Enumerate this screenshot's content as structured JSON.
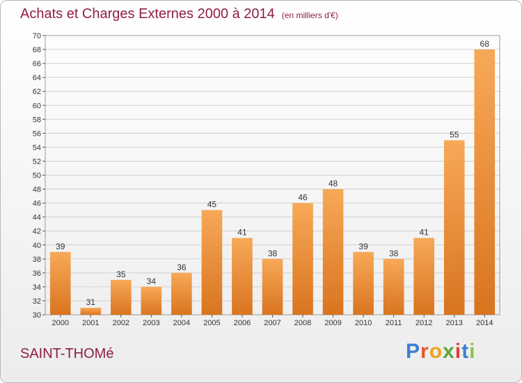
{
  "title": "Achats et Charges Externes 2000 à 2014",
  "unit_label": "(en milliers d'€)",
  "commune": "SAINT-THOMé",
  "logo": {
    "letters": [
      "P",
      "r",
      "o",
      "x",
      "i",
      "t",
      "i"
    ],
    "colors": [
      "#3a7fd0",
      "#e8542a",
      "#f2a01f",
      "#5aa637",
      "#e23a3a",
      "#3a7fd0",
      "#8bc34a"
    ]
  },
  "colors": {
    "bar_top": "#f7a958",
    "bar_bottom": "#d9741f",
    "accent": "#8f1d47"
  },
  "chart_data": {
    "type": "bar",
    "categories": [
      "2000",
      "2001",
      "2002",
      "2003",
      "2004",
      "2005",
      "2006",
      "2007",
      "2008",
      "2009",
      "2010",
      "2011",
      "2012",
      "2013",
      "2014"
    ],
    "values": [
      39,
      31,
      35,
      34,
      36,
      45,
      41,
      38,
      46,
      48,
      39,
      38,
      41,
      55,
      68
    ],
    "ylim": [
      30,
      70
    ],
    "yticks": [
      30,
      32,
      34,
      36,
      38,
      40,
      42,
      44,
      46,
      48,
      50,
      52,
      54,
      56,
      58,
      60,
      62,
      64,
      66,
      68,
      70
    ],
    "grid": true
  }
}
